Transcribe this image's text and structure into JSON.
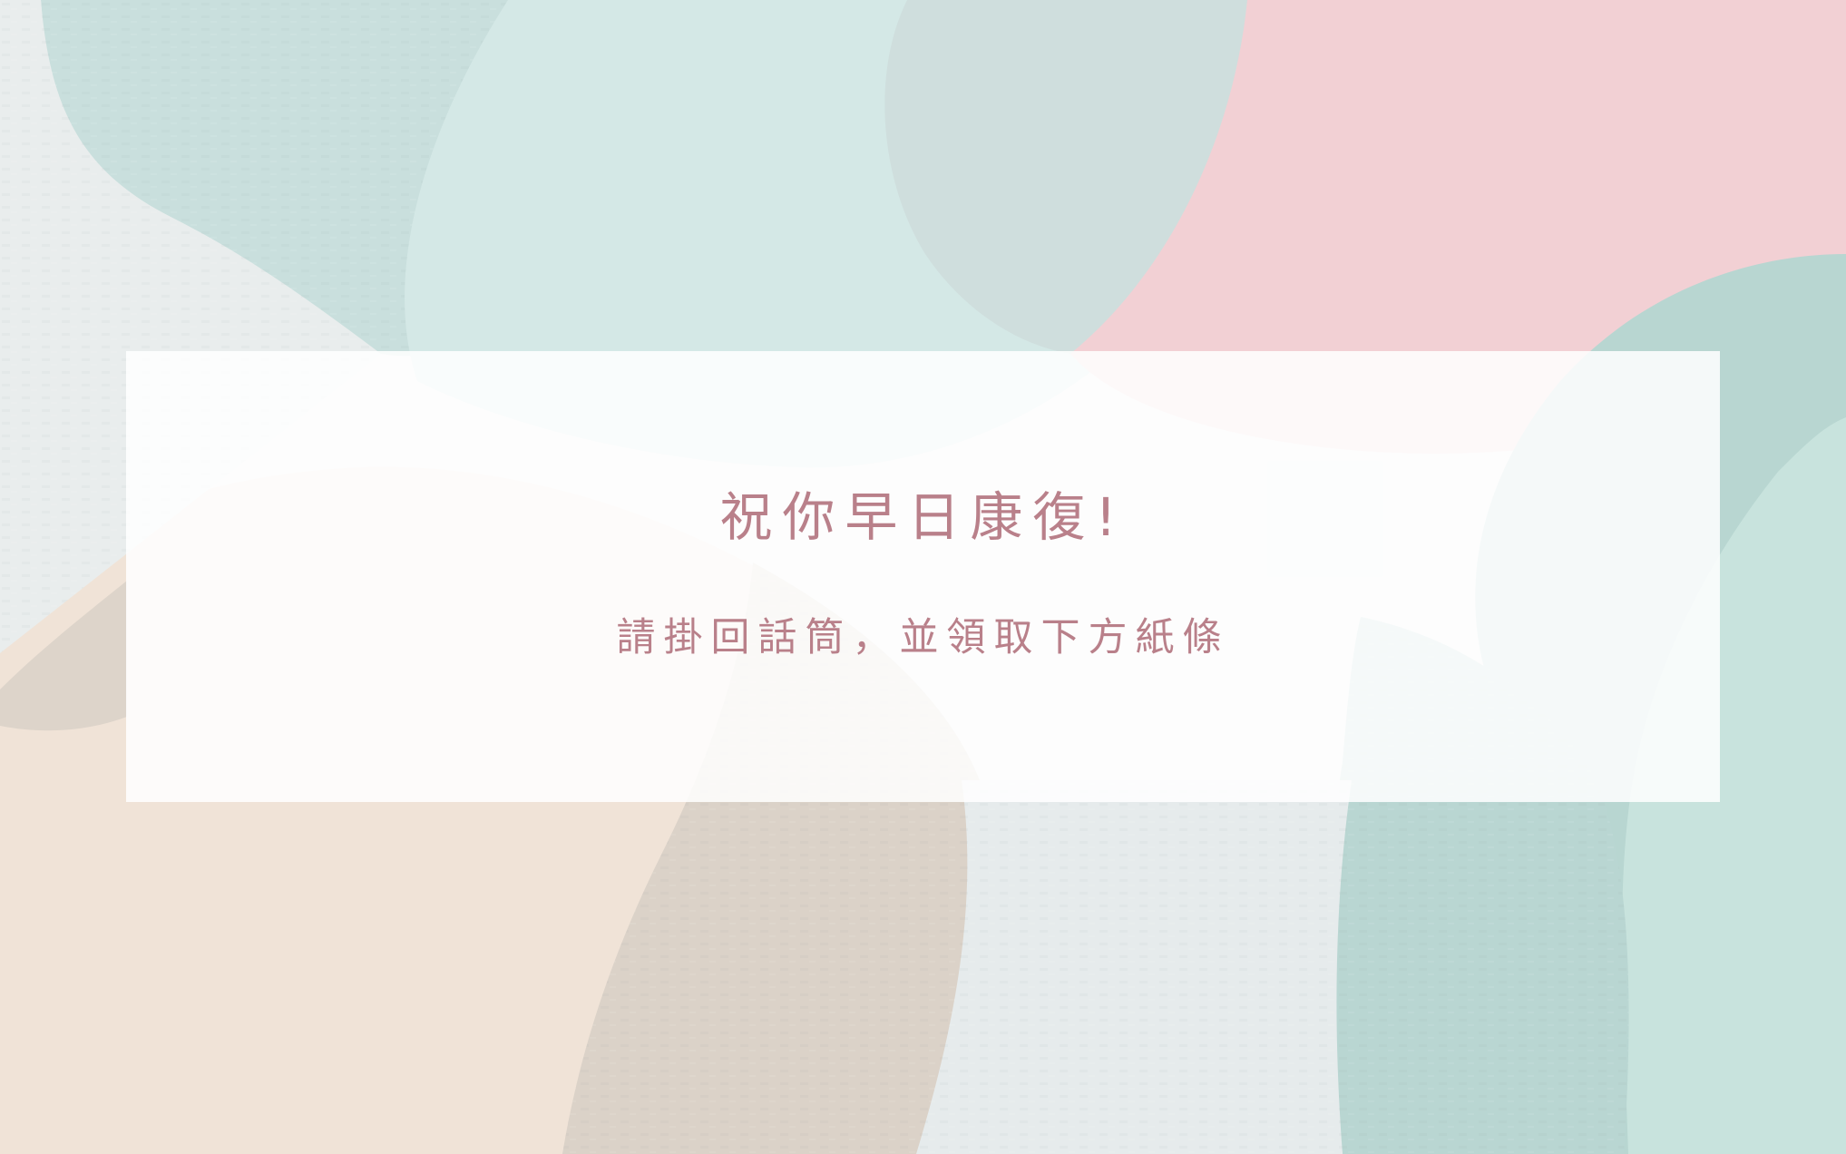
{
  "screen": {
    "greeting": "祝你早日康復!",
    "instruction": "請掛回話筒，並領取下方紙條"
  },
  "colors": {
    "text": "#b9808a",
    "teal_light": "#d3e8e6",
    "teal_mid": "#cfdedd",
    "teal_dark": "#b8d6d1",
    "mint": "#c9e3de",
    "pink": "#f2d0d4",
    "peach": "#f0e3d7",
    "taupe": "#dcd3c9",
    "grey_light": "#e8ecec",
    "panel": "#ffffff"
  }
}
